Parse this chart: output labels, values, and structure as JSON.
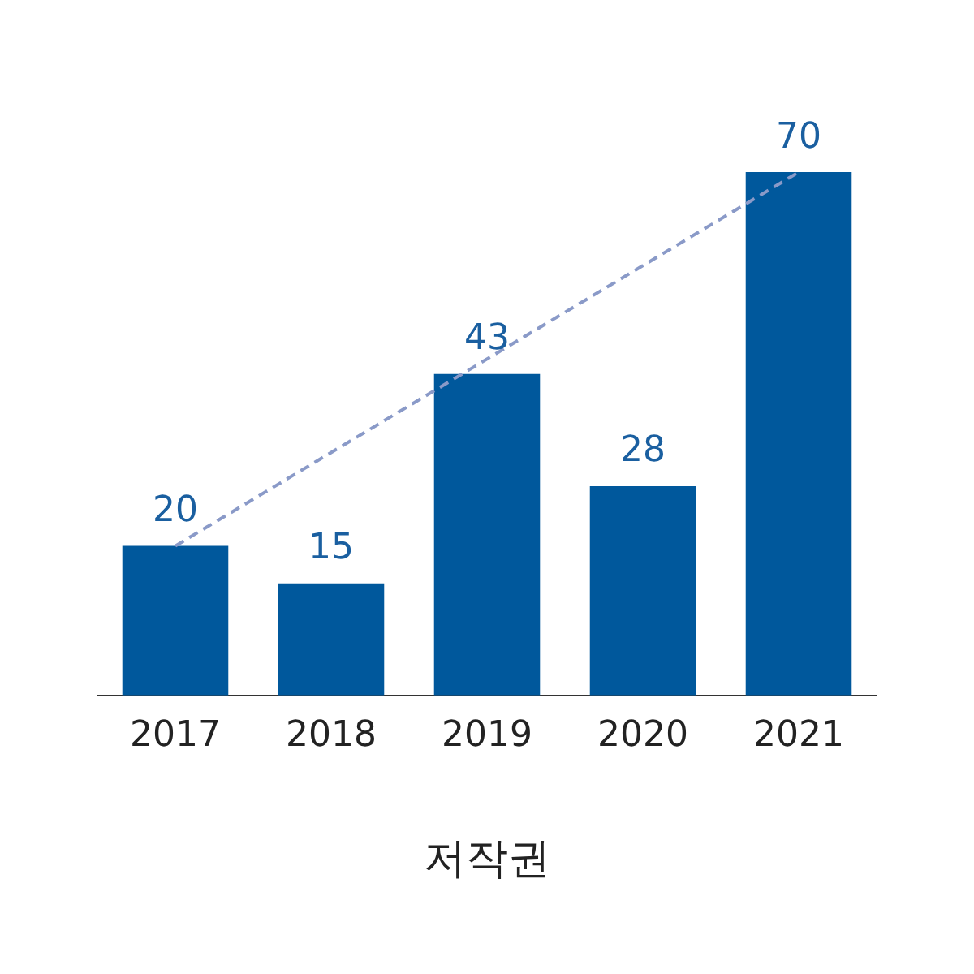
{
  "chart_data": {
    "type": "bar",
    "xlabel": "저작권",
    "categories": [
      "2017",
      "2018",
      "2019",
      "2020",
      "2021"
    ],
    "series": [
      {
        "color": "#00589c",
        "values": [
          20,
          15,
          43,
          28,
          70
        ],
        "value_labels": [
          "20",
          "15",
          "43",
          "28",
          "70"
        ]
      },
      {
        "type": "line",
        "values": [
          20,
          null,
          null,
          null,
          70
        ],
        "color": "#8a9ac8",
        "line_style": "dashed",
        "marker": "none"
      }
    ],
    "grid": false,
    "legend": false,
    "tick_labels": "x"
  }
}
